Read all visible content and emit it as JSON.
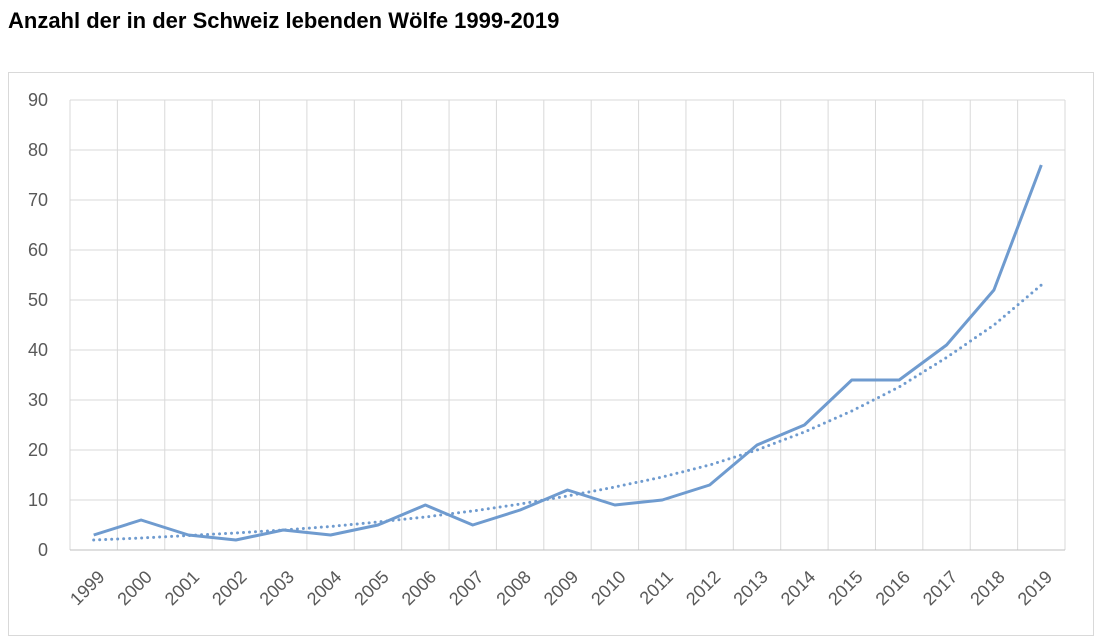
{
  "chart_data": {
    "type": "line",
    "title": "Anzahl der in der Schweiz lebenden Wölfe 1999-2019",
    "categories": [
      "1999",
      "2000",
      "2001",
      "2002",
      "2003",
      "2004",
      "2005",
      "2006",
      "2007",
      "2008",
      "2009",
      "2010",
      "2011",
      "2012",
      "2013",
      "2014",
      "2015",
      "2016",
      "2017",
      "2018",
      "2019"
    ],
    "series": [
      {
        "color": "#6f9bcf",
        "dash": "solid",
        "values": [
          3,
          6,
          3,
          2,
          4,
          3,
          5,
          9,
          5,
          8,
          12,
          9,
          10,
          13,
          21,
          25,
          34,
          34,
          41,
          52,
          77
        ]
      },
      {
        "color": "#6f9bcf",
        "dash": "dotted",
        "values": [
          2,
          2.4,
          2.9,
          3.4,
          4.0,
          4.7,
          5.6,
          6.6,
          7.8,
          9.2,
          10.8,
          12.6,
          14.6,
          17,
          20,
          23.6,
          27.8,
          32.6,
          38.5,
          45,
          53
        ]
      }
    ],
    "ylim": [
      0,
      90
    ],
    "yticks": [
      0,
      10,
      20,
      30,
      40,
      50,
      60,
      70,
      80,
      90
    ],
    "grid": true
  }
}
